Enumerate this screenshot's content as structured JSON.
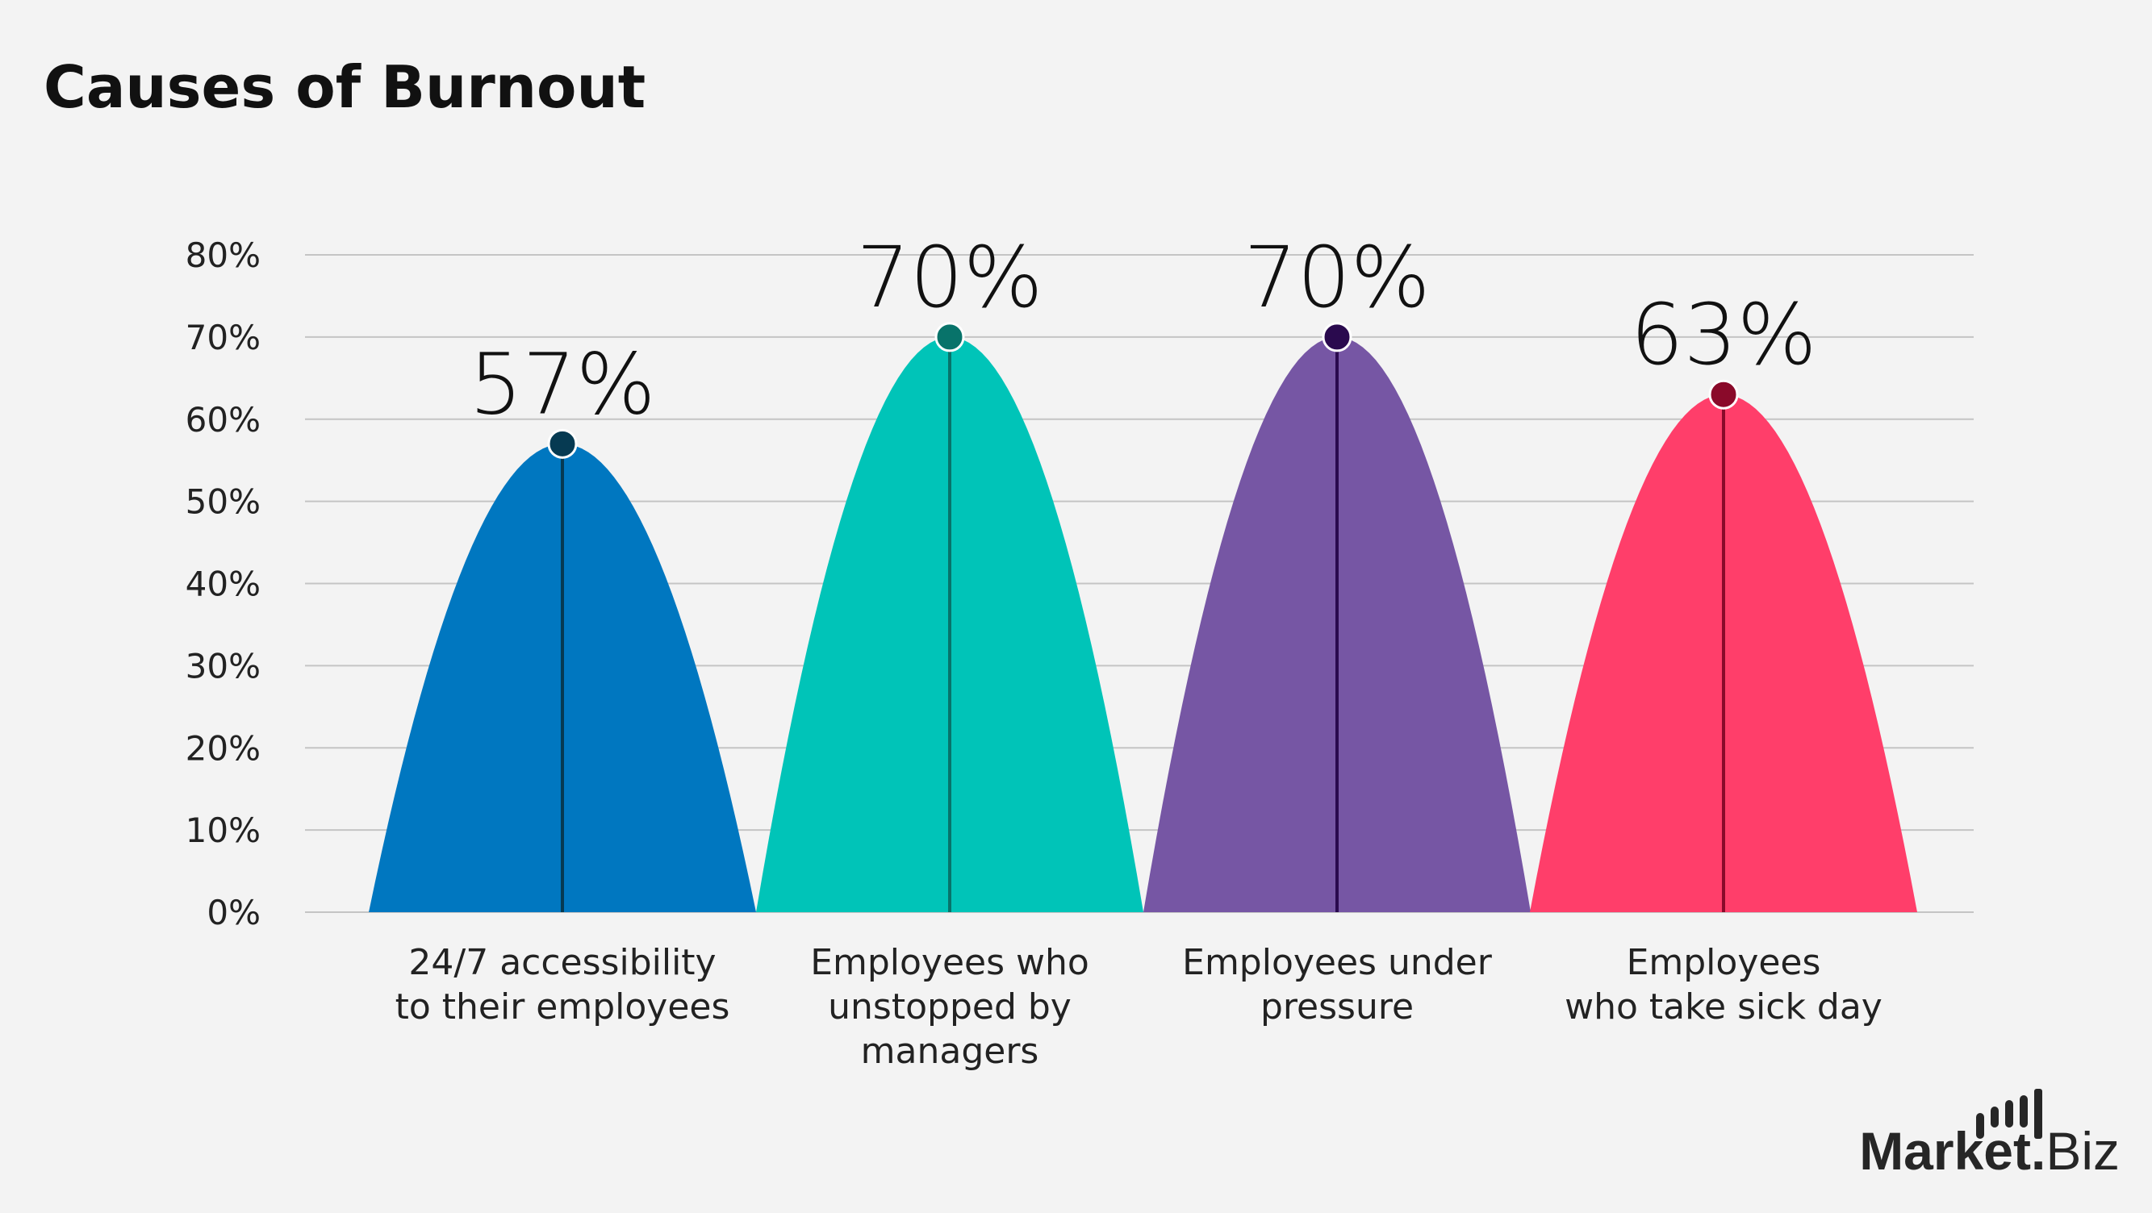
{
  "chart_data": {
    "type": "area",
    "title": "Causes of Burnout",
    "categories": [
      [
        "24/7 accessibility",
        "to their employees"
      ],
      [
        "Employees who",
        "unstopped by",
        "managers"
      ],
      [
        "Employees under",
        "pressure"
      ],
      [
        "Employees",
        "who take sick day"
      ]
    ],
    "values": [
      57,
      70,
      70,
      63
    ],
    "value_labels": [
      "57%",
      "70%",
      "70%",
      "63%"
    ],
    "colors": [
      "#0077C0",
      "#00C4B8",
      "#7656A4",
      "#FF3E6A"
    ],
    "marker_colors": [
      "#063A52",
      "#08736A",
      "#2A0A4E",
      "#8A0A2A"
    ],
    "ylim": [
      0,
      80
    ],
    "yticks": [
      "0%",
      "10%",
      "20%",
      "30%",
      "40%",
      "50%",
      "60%",
      "70%",
      "80%"
    ],
    "grid": true,
    "xlabel": "",
    "ylabel": ""
  },
  "brand": {
    "logo_text_bold": "Market",
    "logo_text_light": "Biz"
  }
}
